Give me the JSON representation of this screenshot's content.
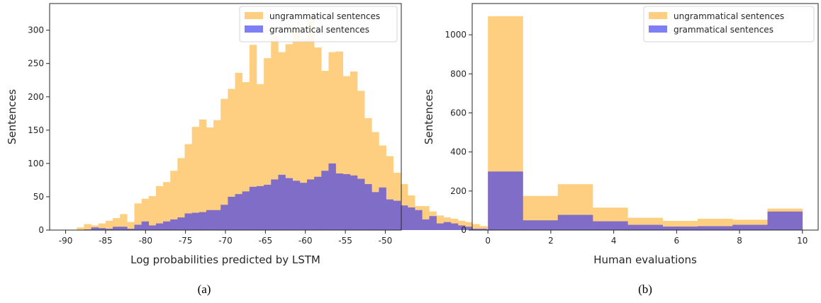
{
  "colors": {
    "ungrammatical": "#fecf80",
    "grammatical": "#7f6dc8",
    "legend_grammatical": "#7f7ff5"
  },
  "chart_data": [
    {
      "type": "bar",
      "caption": "(a)",
      "xlabel": "Log probabilities predicted by LSTM",
      "ylabel": "Sentences",
      "xlim": [
        -92,
        -48
      ],
      "ylim": [
        0,
        340
      ],
      "xticks": [
        -90,
        -85,
        -80,
        -75,
        -70,
        -65,
        -60,
        -55,
        -50
      ],
      "yticks": [
        0,
        50,
        100,
        150,
        200,
        250,
        300
      ],
      "bin_start": -89.5,
      "bin_width": 0.9,
      "series": [
        {
          "name": "ungrammatical sentences",
          "values": [
            0,
            4,
            9,
            7,
            10,
            14,
            18,
            24,
            12,
            40,
            47,
            51,
            66,
            72,
            89,
            108,
            129,
            155,
            166,
            154,
            165,
            197,
            212,
            236,
            222,
            278,
            219,
            258,
            292,
            267,
            279,
            300,
            287,
            316,
            274,
            239,
            267,
            268,
            231,
            238,
            209,
            168,
            147,
            127,
            111,
            86,
            69,
            52,
            36,
            36,
            28,
            22,
            19,
            17,
            14,
            12,
            9,
            6,
            5,
            3,
            2,
            0
          ]
        },
        {
          "name": "grammatical sentences",
          "values": [
            0,
            0,
            1,
            4,
            3,
            2,
            5,
            5,
            2,
            8,
            13,
            7,
            10,
            13,
            16,
            19,
            25,
            26,
            27,
            30,
            30,
            38,
            50,
            54,
            58,
            65,
            66,
            68,
            76,
            83,
            78,
            74,
            71,
            76,
            80,
            89,
            100,
            85,
            84,
            82,
            77,
            69,
            57,
            64,
            46,
            44,
            37,
            34,
            30,
            16,
            21,
            10,
            12,
            10,
            7,
            5,
            2,
            2,
            1,
            1,
            1,
            0
          ]
        }
      ]
    },
    {
      "type": "bar",
      "caption": "(b)",
      "xlabel": "Human evaluations",
      "ylabel": "Sentences",
      "xlim": [
        -0.5,
        10.5
      ],
      "ylim": [
        0,
        1160
      ],
      "xticks": [
        0,
        2,
        4,
        6,
        8,
        10
      ],
      "yticks": [
        0,
        200,
        400,
        600,
        800,
        1000
      ],
      "bin_edges": [
        0,
        1.111,
        2.222,
        3.333,
        4.444,
        5.556,
        6.667,
        7.778,
        8.889,
        10
      ],
      "series": [
        {
          "name": "ungrammatical sentences",
          "values": [
            1095,
            175,
            235,
            115,
            63,
            47,
            58,
            53,
            110
          ]
        },
        {
          "name": "grammatical sentences",
          "values": [
            300,
            50,
            78,
            45,
            27,
            18,
            20,
            27,
            95
          ]
        }
      ]
    }
  ]
}
